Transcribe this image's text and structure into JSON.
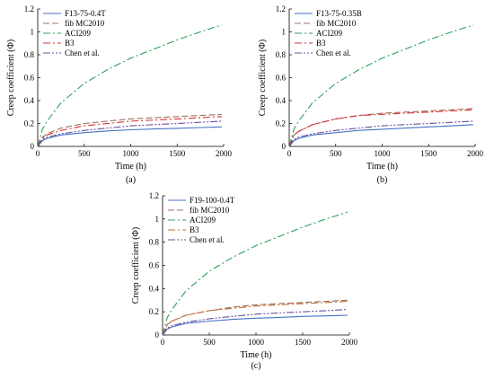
{
  "chart_data": [
    {
      "type": "line",
      "panel_label": "(a)",
      "xlabel": "Time (h)",
      "ylabel": "Creep coefficient (Φ)",
      "xlim": [
        0,
        2000
      ],
      "ylim": [
        0,
        1.2
      ],
      "x_ticks": [
        "0",
        "500",
        "1000",
        "1500",
        "2000"
      ],
      "y_ticks": [
        "0",
        "0.2",
        "0.4",
        "0.6",
        "0.8",
        "1",
        "1.2"
      ],
      "legend_position": "top-left",
      "x": [
        0,
        50,
        100,
        250,
        500,
        750,
        1000,
        1250,
        1500,
        1750,
        1980
      ],
      "series": [
        {
          "name": "F13-75-0.4T",
          "color": "#4472c4",
          "dash": "solid",
          "values": [
            0,
            0.05,
            0.07,
            0.1,
            0.12,
            0.135,
            0.145,
            0.152,
            0.158,
            0.165,
            0.17
          ]
        },
        {
          "name": "fib MC2010",
          "color": "#a07060",
          "dash": "dash",
          "values": [
            0,
            0.08,
            0.11,
            0.16,
            0.2,
            0.22,
            0.24,
            0.25,
            0.26,
            0.27,
            0.28
          ]
        },
        {
          "name": "ACI209",
          "color": "#2ca05a",
          "dash": "dashdot",
          "values": [
            0,
            0.15,
            0.22,
            0.38,
            0.55,
            0.67,
            0.77,
            0.85,
            0.93,
            1.0,
            1.06
          ]
        },
        {
          "name": "B3",
          "color": "#d83030",
          "dash": "dashdot",
          "values": [
            0,
            0.07,
            0.1,
            0.14,
            0.18,
            0.2,
            0.22,
            0.23,
            0.24,
            0.25,
            0.26
          ]
        },
        {
          "name": "Chen et al.",
          "color": "#6a50a0",
          "dash": "dashdotdot",
          "values": [
            0,
            0.06,
            0.08,
            0.11,
            0.14,
            0.16,
            0.18,
            0.19,
            0.2,
            0.21,
            0.22
          ]
        }
      ]
    },
    {
      "type": "line",
      "panel_label": "(b)",
      "xlabel": "Time (h)",
      "ylabel": "Creep coefficient (Φ)",
      "xlim": [
        0,
        2000
      ],
      "ylim": [
        0,
        1.2
      ],
      "x_ticks": [
        "0",
        "500",
        "1000",
        "1500",
        "2000"
      ],
      "y_ticks": [
        "0",
        "0.2",
        "0.4",
        "0.6",
        "0.8",
        "1",
        "1.2"
      ],
      "legend_position": "top-left",
      "x": [
        0,
        50,
        100,
        250,
        500,
        750,
        1000,
        1250,
        1500,
        1750,
        1980
      ],
      "series": [
        {
          "name": "F13-75-0.35B",
          "color": "#4472c4",
          "dash": "solid",
          "values": [
            0,
            0.05,
            0.07,
            0.1,
            0.12,
            0.14,
            0.15,
            0.16,
            0.17,
            0.18,
            0.19
          ]
        },
        {
          "name": "fib MC2010",
          "color": "#a07060",
          "dash": "dash",
          "values": [
            0,
            0.1,
            0.13,
            0.19,
            0.24,
            0.27,
            0.29,
            0.3,
            0.31,
            0.32,
            0.33
          ]
        },
        {
          "name": "ACI209",
          "color": "#2ca05a",
          "dash": "dashdot",
          "values": [
            0,
            0.15,
            0.22,
            0.38,
            0.55,
            0.67,
            0.77,
            0.85,
            0.93,
            1.0,
            1.06
          ]
        },
        {
          "name": "B3",
          "color": "#d83030",
          "dash": "dashdot",
          "values": [
            0,
            0.1,
            0.13,
            0.19,
            0.24,
            0.27,
            0.28,
            0.29,
            0.3,
            0.31,
            0.32
          ]
        },
        {
          "name": "Chen et al.",
          "color": "#6a50a0",
          "dash": "dashdotdot",
          "values": [
            0,
            0.06,
            0.08,
            0.11,
            0.14,
            0.16,
            0.18,
            0.19,
            0.2,
            0.21,
            0.22
          ]
        }
      ]
    },
    {
      "type": "line",
      "panel_label": "(c)",
      "xlabel": "Time (h)",
      "ylabel": "Creep coefficient (Φ)",
      "xlim": [
        0,
        2000
      ],
      "ylim": [
        0,
        1.2
      ],
      "x_ticks": [
        "0",
        "500",
        "1000",
        "1500",
        "2000"
      ],
      "y_ticks": [
        "0",
        "0.2",
        "0.4",
        "0.6",
        "0.8",
        "1",
        "1.2"
      ],
      "legend_position": "top-left",
      "x": [
        0,
        50,
        100,
        250,
        500,
        750,
        1000,
        1250,
        1500,
        1750,
        1980
      ],
      "series": [
        {
          "name": "F19-100-0.4T",
          "color": "#4472c4",
          "dash": "solid",
          "values": [
            0,
            0.05,
            0.07,
            0.1,
            0.12,
            0.135,
            0.145,
            0.152,
            0.16,
            0.165,
            0.17
          ]
        },
        {
          "name": "fib MC2010",
          "color": "#a07060",
          "dash": "dash",
          "values": [
            0,
            0.09,
            0.12,
            0.17,
            0.21,
            0.24,
            0.26,
            0.27,
            0.28,
            0.29,
            0.3
          ]
        },
        {
          "name": "ACI209",
          "color": "#2ca05a",
          "dash": "dashdot",
          "values": [
            0,
            0.15,
            0.22,
            0.38,
            0.55,
            0.67,
            0.77,
            0.85,
            0.93,
            1.0,
            1.06
          ]
        },
        {
          "name": "B3",
          "color": "#c07030",
          "dash": "dashdot",
          "values": [
            0,
            0.09,
            0.12,
            0.17,
            0.21,
            0.23,
            0.25,
            0.26,
            0.27,
            0.28,
            0.29
          ]
        },
        {
          "name": "Chen et al.",
          "color": "#6a50a0",
          "dash": "dashdotdot",
          "values": [
            0,
            0.06,
            0.08,
            0.11,
            0.14,
            0.16,
            0.18,
            0.19,
            0.2,
            0.21,
            0.22
          ]
        }
      ]
    }
  ]
}
